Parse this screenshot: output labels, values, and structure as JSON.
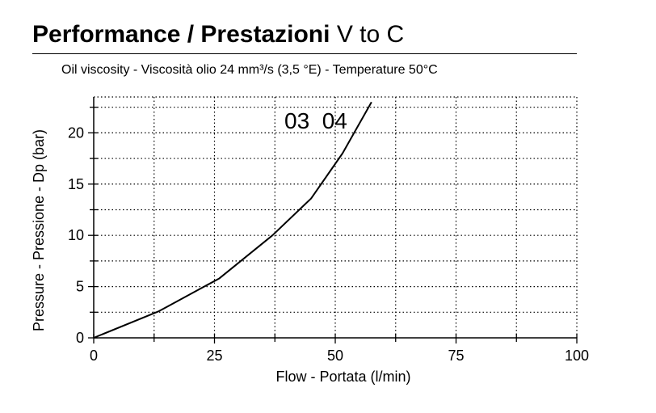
{
  "header": {
    "title_bold": "Performance / Prestazioni",
    "title_regular": "V to C",
    "subtitle": "Oil viscosity - Viscosità olio 24 mm³/s (3,5 °E) - Temperature 50°C"
  },
  "chart_data": {
    "type": "line",
    "xlabel": "Flow - Portata (l/min)",
    "ylabel": "Pressure - Pressione - Dp (bar)",
    "xlim": [
      0,
      100
    ],
    "ylim": [
      0,
      23.5
    ],
    "x_ticks": [
      0,
      25,
      50,
      75,
      100
    ],
    "y_ticks": [
      0,
      5,
      10,
      15,
      20
    ],
    "x_tick_labels": [
      "0",
      "25",
      "50",
      "75",
      "100"
    ],
    "y_tick_labels": [
      "0",
      "5",
      "10",
      "15",
      "20"
    ],
    "grid": true,
    "annotation": "03  04",
    "series": [
      {
        "name": "03 04",
        "x": [
          0,
          13.5,
          26,
          37,
          45,
          51.5,
          57.5
        ],
        "y": [
          0,
          2.6,
          5.8,
          10,
          13.6,
          18,
          23
        ]
      }
    ]
  }
}
